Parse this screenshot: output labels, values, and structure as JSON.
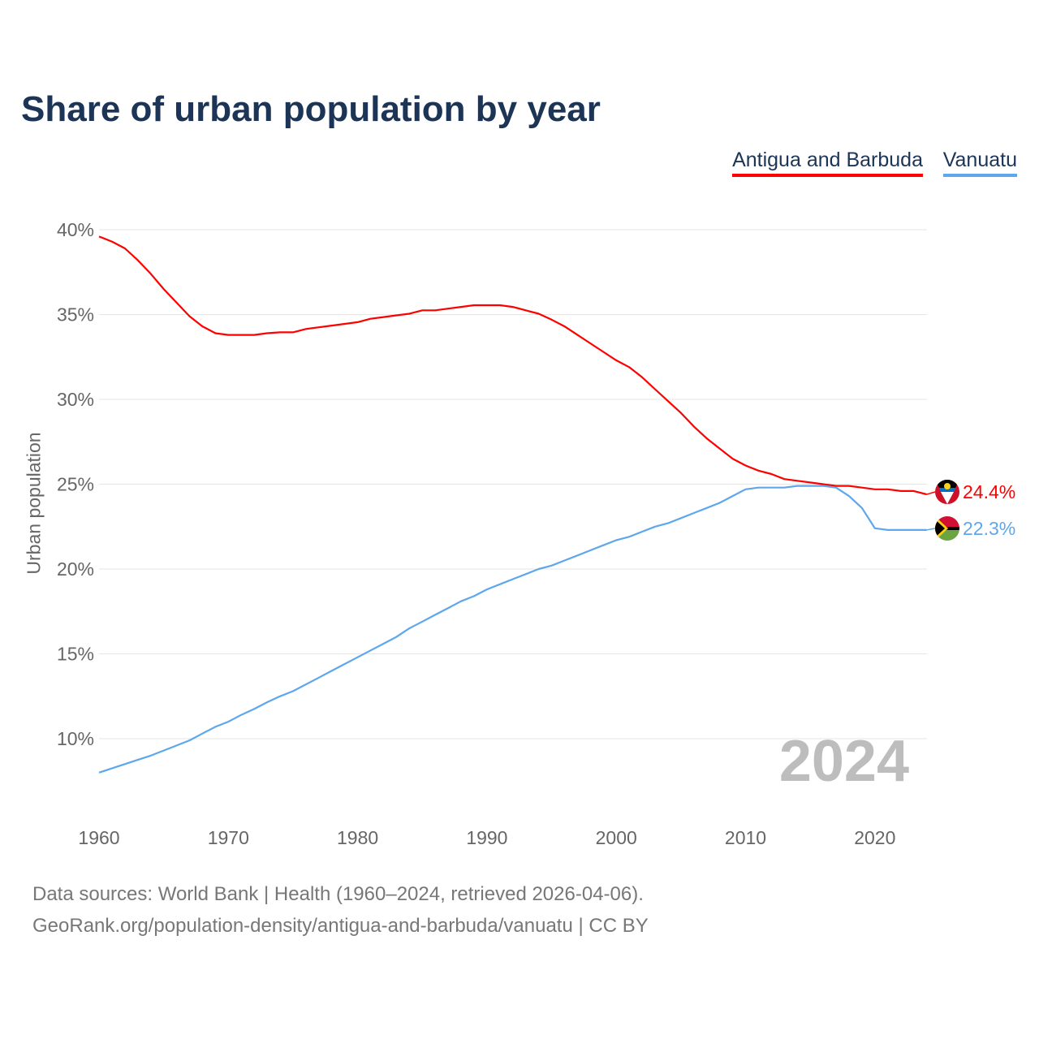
{
  "chart_data": {
    "type": "line",
    "title": "Share of urban population by year",
    "xlabel": "",
    "ylabel": "Urban population",
    "x_ticks": [
      "1960",
      "1970",
      "1980",
      "1990",
      "2000",
      "2010",
      "2020"
    ],
    "y_ticks": [
      "10%",
      "15%",
      "20%",
      "25%",
      "30%",
      "35%",
      "40%"
    ],
    "y_tick_values": [
      10,
      15,
      20,
      25,
      30,
      35,
      40
    ],
    "xlim": [
      1960,
      2024
    ],
    "ylim": [
      8,
      40
    ],
    "grid": true,
    "legend_placement": "top-right",
    "year_watermark": "2024",
    "x_start": 1960,
    "series": [
      {
        "name": "Antigua and Barbuda",
        "color": "#ff0000",
        "end_label": "24.4%",
        "values": [
          39.6,
          39.3,
          38.9,
          38.2,
          37.4,
          36.5,
          35.7,
          34.9,
          34.3,
          33.9,
          33.8,
          33.8,
          33.8,
          33.9,
          33.95,
          33.95,
          34.15,
          34.25,
          34.35,
          34.45,
          34.55,
          34.75,
          34.85,
          34.95,
          35.05,
          35.25,
          35.25,
          35.35,
          35.45,
          35.55,
          35.55,
          35.55,
          35.45,
          35.25,
          35.05,
          34.7,
          34.3,
          33.8,
          33.3,
          32.8,
          32.3,
          31.9,
          31.3,
          30.6,
          29.9,
          29.2,
          28.4,
          27.7,
          27.1,
          26.5,
          26.1,
          25.8,
          25.6,
          25.3,
          25.2,
          25.1,
          25.0,
          24.9,
          24.9,
          24.8,
          24.7,
          24.7,
          24.6,
          24.6,
          24.4
        ]
      },
      {
        "name": "Vanuatu",
        "color": "#5ea7ec",
        "end_label": "22.3%",
        "values": [
          8.0,
          8.25,
          8.5,
          8.75,
          9.0,
          9.3,
          9.6,
          9.9,
          10.3,
          10.7,
          11.0,
          11.4,
          11.75,
          12.15,
          12.5,
          12.8,
          13.2,
          13.6,
          14.0,
          14.4,
          14.8,
          15.2,
          15.6,
          16.0,
          16.5,
          16.9,
          17.3,
          17.7,
          18.1,
          18.4,
          18.8,
          19.1,
          19.4,
          19.7,
          20.0,
          20.2,
          20.5,
          20.8,
          21.1,
          21.4,
          21.7,
          21.9,
          22.2,
          22.5,
          22.7,
          23.0,
          23.3,
          23.6,
          23.9,
          24.3,
          24.7,
          24.8,
          24.8,
          24.8,
          24.9,
          24.9,
          24.9,
          24.8,
          24.3,
          23.6,
          22.4,
          22.3,
          22.3,
          22.3,
          22.3
        ]
      }
    ]
  },
  "footer": {
    "line1": "Data sources: World Bank | Health (1960–2024, retrieved 2026-04-06).",
    "line2": "GeoRank.org/population-density/antigua-and-barbuda/vanuatu | CC BY"
  }
}
